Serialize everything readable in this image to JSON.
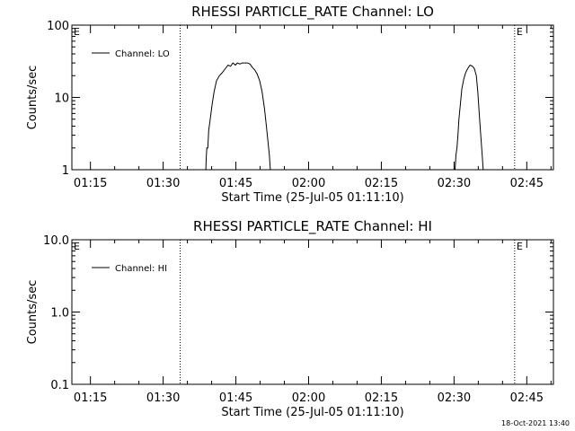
{
  "chart_data": [
    {
      "type": "line",
      "title": "RHESSI PARTICLE_RATE Channel: LO",
      "xlabel": "Start Time (25-Jul-05 01:11:10)",
      "ylabel": "Counts/sec",
      "x_ticks": [
        "01:15",
        "01:30",
        "01:45",
        "02:00",
        "02:15",
        "02:30",
        "02:45"
      ],
      "x_tick_minutes": [
        75,
        90,
        105,
        120,
        135,
        150,
        165
      ],
      "xlim_minutes": [
        71.17,
        170.5
      ],
      "y_scale": "log",
      "ylim": [
        1,
        100
      ],
      "y_ticks": [
        "1",
        "10",
        "100"
      ],
      "y_tick_values": [
        1,
        10,
        100
      ],
      "legend": {
        "label": "Channel: LO",
        "position": "top-left"
      },
      "flag_lines_minutes": [
        93.5,
        162.5
      ],
      "flag_markers": [
        {
          "label": "E",
          "minute": 71.17
        },
        {
          "label": "E",
          "minute": 162.5
        }
      ],
      "grid": false,
      "series": [
        {
          "name": "Channel: LO",
          "segments": [
            [
              [
                98.8,
                1.0
              ],
              [
                98.9,
                1.5
              ],
              [
                99.0,
                2.0
              ],
              [
                99.2,
                2.0
              ],
              [
                99.4,
                3.5
              ],
              [
                99.7,
                5.0
              ],
              [
                100.1,
                8.0
              ],
              [
                100.5,
                12.0
              ],
              [
                101.0,
                17.0
              ],
              [
                101.6,
                20.0
              ],
              [
                102.2,
                22.0
              ],
              [
                102.8,
                25.0
              ],
              [
                103.4,
                28.0
              ],
              [
                103.9,
                27.0
              ],
              [
                104.4,
                30.0
              ],
              [
                104.9,
                28.0
              ],
              [
                105.3,
                30.0
              ],
              [
                105.8,
                29.0
              ],
              [
                106.3,
                30.0
              ],
              [
                106.8,
                30.0
              ],
              [
                107.4,
                30.0
              ],
              [
                107.9,
                29.0
              ],
              [
                108.4,
                26.0
              ],
              [
                108.9,
                24.0
              ],
              [
                109.4,
                21.0
              ],
              [
                109.9,
                17.0
              ],
              [
                110.4,
                12.0
              ],
              [
                110.9,
                7.0
              ],
              [
                111.3,
                4.0
              ],
              [
                111.6,
                2.5
              ],
              [
                111.9,
                1.6
              ],
              [
                112.1,
                1.0
              ]
            ],
            [
              [
                150.2,
                1.0
              ],
              [
                150.4,
                1.6
              ],
              [
                150.6,
                2.0
              ],
              [
                150.8,
                3.0
              ],
              [
                151.0,
                5.0
              ],
              [
                151.3,
                8.0
              ],
              [
                151.6,
                13.0
              ],
              [
                152.0,
                18.0
              ],
              [
                152.4,
                22.0
              ],
              [
                152.8,
                25.0
              ],
              [
                153.3,
                28.0
              ],
              [
                153.8,
                27.0
              ],
              [
                154.2,
                25.0
              ],
              [
                154.6,
                20.0
              ],
              [
                154.9,
                12.0
              ],
              [
                155.2,
                6.0
              ],
              [
                155.5,
                3.0
              ],
              [
                155.8,
                1.6
              ],
              [
                156.0,
                1.0
              ]
            ]
          ]
        }
      ]
    },
    {
      "type": "line",
      "title": "RHESSI PARTICLE_RATE Channel: HI",
      "xlabel": "Start Time (25-Jul-05 01:11:10)",
      "ylabel": "Counts/sec",
      "x_ticks": [
        "01:15",
        "01:30",
        "01:45",
        "02:00",
        "02:15",
        "02:30",
        "02:45"
      ],
      "x_tick_minutes": [
        75,
        90,
        105,
        120,
        135,
        150,
        165
      ],
      "xlim_minutes": [
        71.17,
        170.5
      ],
      "y_scale": "log",
      "ylim": [
        0.1,
        10
      ],
      "y_ticks": [
        "0.1",
        "1.0",
        "10.0"
      ],
      "y_tick_values": [
        0.1,
        1,
        10
      ],
      "legend": {
        "label": "Channel: HI",
        "position": "top-left"
      },
      "flag_lines_minutes": [
        93.5,
        162.5
      ],
      "flag_markers": [
        {
          "label": "E",
          "minute": 71.17
        },
        {
          "label": "E",
          "minute": 162.5
        }
      ],
      "grid": false,
      "series": [
        {
          "name": "Channel: HI",
          "segments": []
        }
      ]
    }
  ],
  "footer": {
    "timestamp": "18-Oct-2021 13:40"
  }
}
